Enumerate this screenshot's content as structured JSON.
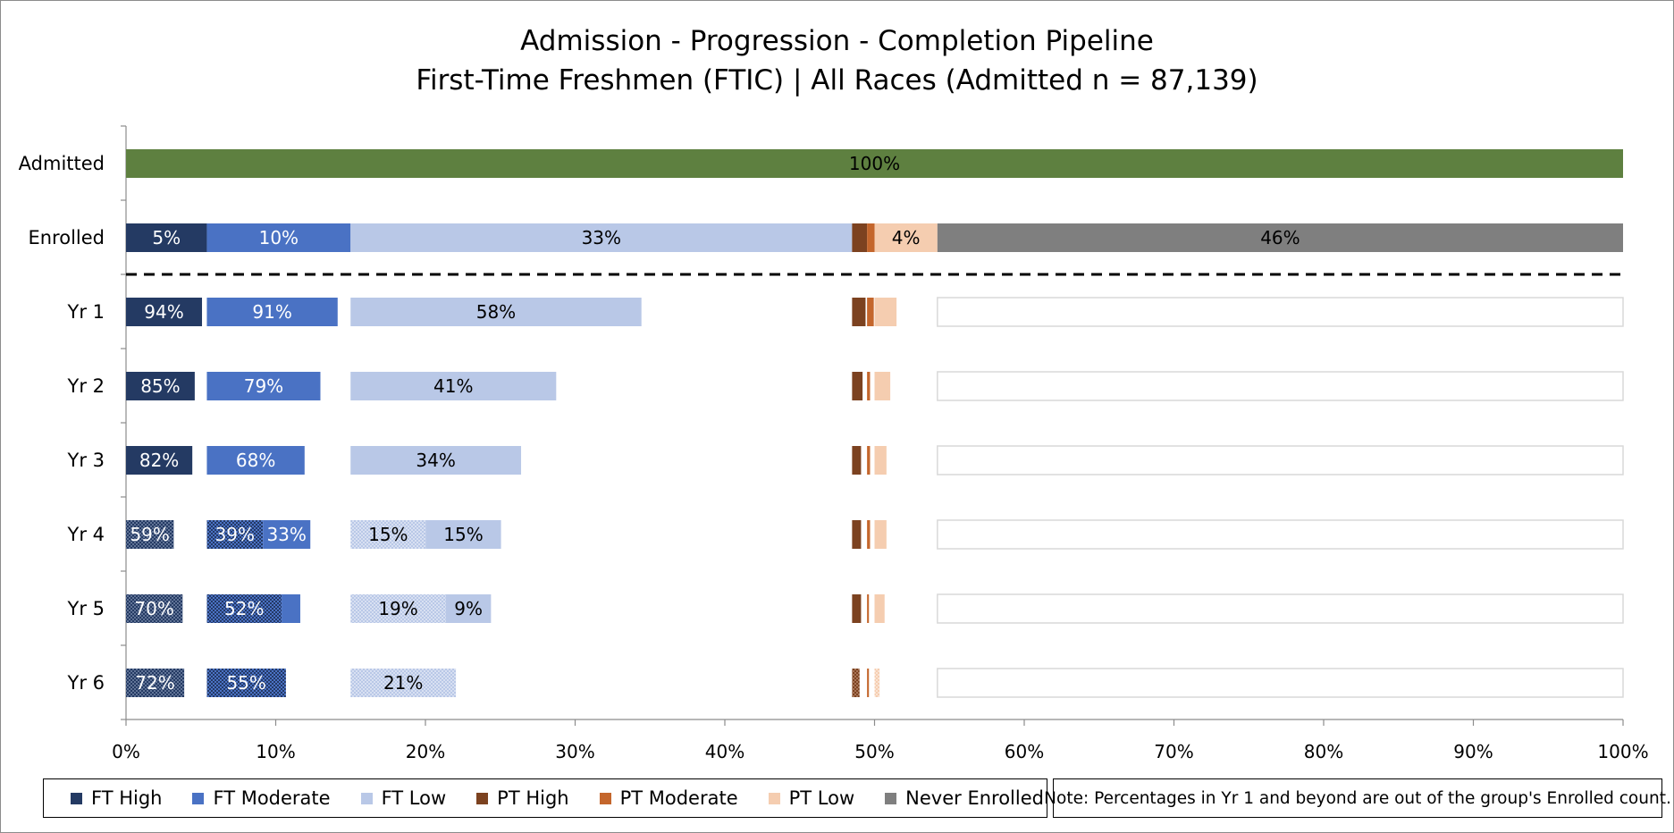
{
  "chart_data": {
    "type": "bar",
    "title": "Admission - Progression - Completion Pipeline",
    "subtitle": "First-Time Freshmen (FTIC) | All Races (Admitted n = 87,139)",
    "xlim": [
      0,
      100
    ],
    "x_ticks": [
      "0%",
      "10%",
      "20%",
      "30%",
      "40%",
      "50%",
      "60%",
      "70%",
      "80%",
      "90%",
      "100%"
    ],
    "categories": [
      "Admitted",
      "Enrolled",
      "Yr 1",
      "Yr 2",
      "Yr 3",
      "Yr 4",
      "Yr 5",
      "Yr 6"
    ],
    "colors": {
      "admitted": "#5e8040",
      "ft_high": "#243a63",
      "ft_moderate": "#4a72c4",
      "ft_low": "#b9c8e7",
      "pt_high": "#7c4220",
      "pt_moderate": "#c4662c",
      "pt_low": "#f5cdb0",
      "never_enrolled": "#7f7f7f"
    },
    "legend": [
      {
        "label": "FT High",
        "color": "#243a63"
      },
      {
        "label": "FT Moderate",
        "color": "#4a72c4"
      },
      {
        "label": "FT Low",
        "color": "#b9c8e7"
      },
      {
        "label": "PT High",
        "color": "#7c4220"
      },
      {
        "label": "PT Moderate",
        "color": "#c4662c"
      },
      {
        "label": "PT Low",
        "color": "#f5cdb0"
      },
      {
        "label": "Never Enrolled",
        "color": "#7f7f7f"
      }
    ],
    "note": "Note: Percentages in Yr 1 and beyond are out of the group's Enrolled count.",
    "admitted": {
      "value": 100,
      "label": "100%"
    },
    "enrolled": {
      "segments": [
        {
          "group": "ft_high",
          "value": 5.4,
          "label": "5%"
        },
        {
          "group": "ft_moderate",
          "value": 9.6,
          "label": "10%"
        },
        {
          "group": "ft_low",
          "value": 33.5,
          "label": "33%"
        },
        {
          "group": "pt_high",
          "value": 1.0,
          "label": ""
        },
        {
          "group": "pt_moderate",
          "value": 0.5,
          "label": ""
        },
        {
          "group": "pt_low",
          "value": 4.2,
          "label": "4%"
        },
        {
          "group": "never_enrolled",
          "value": 45.8,
          "label": "46%"
        }
      ]
    },
    "years": [
      {
        "year": "Yr 1",
        "ft_high": {
          "value": 94,
          "label": "94%"
        },
        "ft_moderate": {
          "value": 91,
          "label": "91%"
        },
        "ft_low": {
          "value": 58,
          "label": "58%"
        },
        "pt_high": {
          "value": 90
        },
        "pt_moderate": {
          "value": 90
        },
        "pt_low": {
          "value": 35
        }
      },
      {
        "year": "Yr 2",
        "ft_high": {
          "value": 85,
          "label": "85%"
        },
        "ft_moderate": {
          "value": 79,
          "label": "79%"
        },
        "ft_low": {
          "value": 41,
          "label": "41%"
        },
        "pt_high": {
          "value": 70
        },
        "pt_moderate": {
          "value": 40
        },
        "pt_low": {
          "value": 25
        }
      },
      {
        "year": "Yr 3",
        "ft_high": {
          "value": 82,
          "label": "82%"
        },
        "ft_moderate": {
          "value": 68,
          "label": "68%"
        },
        "ft_low": {
          "value": 34,
          "label": "34%"
        },
        "pt_high": {
          "value": 60
        },
        "pt_moderate": {
          "value": 40
        },
        "pt_low": {
          "value": 19
        }
      },
      {
        "year": "Yr 4",
        "ft_high": {
          "value": 59,
          "label": "59%",
          "completed": 59,
          "completed_label": "59%",
          "retained": 0,
          "retained_label": ""
        },
        "ft_moderate": {
          "value": 72,
          "label": "39%",
          "completed": 39,
          "completed_label": "39%",
          "retained": 33,
          "retained_label": "33%"
        },
        "ft_low": {
          "value": 30,
          "label": "15%",
          "completed": 15,
          "completed_label": "15%",
          "retained": 15,
          "retained_label": "15%"
        },
        "pt_high": {
          "value": 60
        },
        "pt_moderate": {
          "value": 40
        },
        "pt_low": {
          "value": 19
        }
      },
      {
        "year": "Yr 5",
        "ft_high": {
          "value": 70,
          "label": "70%",
          "completed": 70,
          "completed_label": "70%",
          "retained": 0,
          "retained_label": ""
        },
        "ft_moderate": {
          "value": 65,
          "label": "52%",
          "completed": 52,
          "completed_label": "52%",
          "retained": 13,
          "retained_label": ""
        },
        "ft_low": {
          "value": 28,
          "label": "19%",
          "completed": 19,
          "completed_label": "19%",
          "retained": 9,
          "retained_label": "9%"
        },
        "pt_high": {
          "value": 60
        },
        "pt_moderate": {
          "value": 25
        },
        "pt_low": {
          "value": 16
        }
      },
      {
        "year": "Yr 6",
        "ft_high": {
          "value": 72,
          "label": "72%",
          "completed": 72,
          "completed_label": "72%",
          "retained": 0,
          "retained_label": ""
        },
        "ft_moderate": {
          "value": 55,
          "label": "55%",
          "completed": 55,
          "completed_label": "55%",
          "retained": 0,
          "retained_label": ""
        },
        "ft_low": {
          "value": 21,
          "label": "21%",
          "completed": 21,
          "completed_label": "21%",
          "retained": 0,
          "retained_label": ""
        },
        "pt_high": {
          "value": 50,
          "completed": true
        },
        "pt_moderate": {
          "value": 25
        },
        "pt_low": {
          "value": 8,
          "completed": true
        }
      }
    ]
  }
}
